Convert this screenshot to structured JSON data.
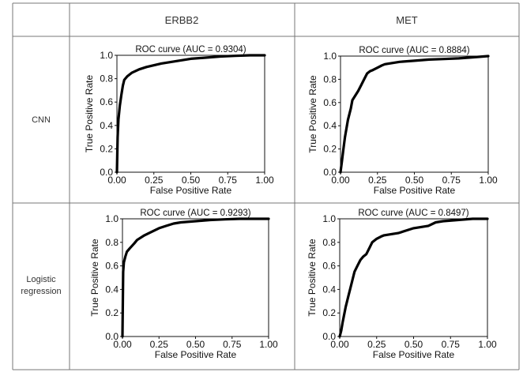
{
  "table": {
    "columns": [
      "ERBB2",
      "MET"
    ],
    "rows": [
      {
        "label_lines": [
          "CNN"
        ]
      },
      {
        "label_lines": [
          "Logistic",
          "regression"
        ]
      }
    ]
  },
  "chart_data": [
    {
      "type": "line",
      "row": 0,
      "col": 0,
      "title": "ROC curve (AUC = 0.9304)",
      "xlabel": "False Positive Rate",
      "ylabel": "True Positive Rate",
      "xlim": [
        0,
        1
      ],
      "ylim": [
        0,
        1
      ],
      "xticks": [
        "0.00",
        "0.25",
        "0.50",
        "0.75",
        "1.00"
      ],
      "yticks": [
        "0.0",
        "0.2",
        "0.4",
        "0.6",
        "0.8",
        "1.0"
      ],
      "series": [
        {
          "x": [
            0,
            0.005,
            0.01,
            0.02,
            0.03,
            0.04,
            0.05,
            0.07,
            0.1,
            0.15,
            0.2,
            0.3,
            0.4,
            0.5,
            0.6,
            0.7,
            0.8,
            0.9,
            1.0
          ],
          "y": [
            0,
            0.3,
            0.45,
            0.57,
            0.66,
            0.74,
            0.79,
            0.82,
            0.85,
            0.88,
            0.9,
            0.93,
            0.95,
            0.97,
            0.98,
            0.99,
            0.995,
            1.0,
            1.0
          ]
        }
      ]
    },
    {
      "type": "line",
      "row": 0,
      "col": 1,
      "title": "ROC curve (AUC = 0.8884)",
      "xlabel": "False Positive Rate",
      "ylabel": "True Positive Rate",
      "xlim": [
        0,
        1
      ],
      "ylim": [
        0,
        1
      ],
      "xticks": [
        "0.00",
        "0.25",
        "0.50",
        "0.75",
        "1.00"
      ],
      "yticks": [
        "0.0",
        "0.2",
        "0.4",
        "0.6",
        "0.8",
        "1.0"
      ],
      "series": [
        {
          "x": [
            0,
            0.01,
            0.02,
            0.03,
            0.05,
            0.07,
            0.08,
            0.1,
            0.12,
            0.14,
            0.16,
            0.18,
            0.2,
            0.22,
            0.25,
            0.28,
            0.3,
            0.35,
            0.4,
            0.5,
            0.6,
            0.7,
            0.8,
            0.9,
            1.0
          ],
          "y": [
            0,
            0.1,
            0.2,
            0.3,
            0.45,
            0.55,
            0.62,
            0.66,
            0.7,
            0.75,
            0.8,
            0.85,
            0.87,
            0.88,
            0.9,
            0.92,
            0.93,
            0.94,
            0.95,
            0.96,
            0.97,
            0.975,
            0.98,
            0.99,
            1.0
          ]
        }
      ]
    },
    {
      "type": "line",
      "row": 1,
      "col": 0,
      "title": "ROC curve (AUC = 0.9293)",
      "xlabel": "False Positive Rate",
      "ylabel": "True Positive Rate",
      "xlim": [
        0,
        1
      ],
      "ylim": [
        0,
        1
      ],
      "xticks": [
        "0.00",
        "0.25",
        "0.50",
        "0.75",
        "1.00"
      ],
      "yticks": [
        "0.0",
        "0.2",
        "0.4",
        "0.6",
        "0.8",
        "1.0"
      ],
      "series": [
        {
          "x": [
            0,
            0.005,
            0.01,
            0.02,
            0.03,
            0.05,
            0.08,
            0.1,
            0.15,
            0.2,
            0.25,
            0.3,
            0.35,
            0.4,
            0.5,
            0.6,
            0.7,
            0.8,
            0.9,
            1.0
          ],
          "y": [
            0,
            0.55,
            0.63,
            0.68,
            0.72,
            0.75,
            0.79,
            0.82,
            0.86,
            0.89,
            0.92,
            0.94,
            0.96,
            0.97,
            0.98,
            0.99,
            0.995,
            1.0,
            1.0,
            1.0
          ]
        }
      ]
    },
    {
      "type": "line",
      "row": 1,
      "col": 1,
      "title": "ROC curve (AUC = 0.8497)",
      "xlabel": "False Positive Rate",
      "ylabel": "True Positive Rate",
      "xlim": [
        0,
        1
      ],
      "ylim": [
        0,
        1
      ],
      "xticks": [
        "0.00",
        "0.25",
        "0.50",
        "0.75",
        "1.00"
      ],
      "yticks": [
        "0.0",
        "0.2",
        "0.4",
        "0.6",
        "0.8",
        "1.0"
      ],
      "series": [
        {
          "x": [
            0,
            0.01,
            0.02,
            0.04,
            0.06,
            0.08,
            0.1,
            0.12,
            0.14,
            0.16,
            0.18,
            0.2,
            0.22,
            0.25,
            0.28,
            0.3,
            0.35,
            0.4,
            0.45,
            0.5,
            0.55,
            0.6,
            0.65,
            0.7,
            0.8,
            0.9,
            1.0
          ],
          "y": [
            0,
            0.05,
            0.12,
            0.25,
            0.35,
            0.45,
            0.55,
            0.6,
            0.65,
            0.68,
            0.7,
            0.75,
            0.8,
            0.83,
            0.85,
            0.86,
            0.87,
            0.88,
            0.9,
            0.92,
            0.93,
            0.94,
            0.97,
            0.98,
            0.99,
            1.0,
            1.0
          ]
        }
      ]
    }
  ]
}
